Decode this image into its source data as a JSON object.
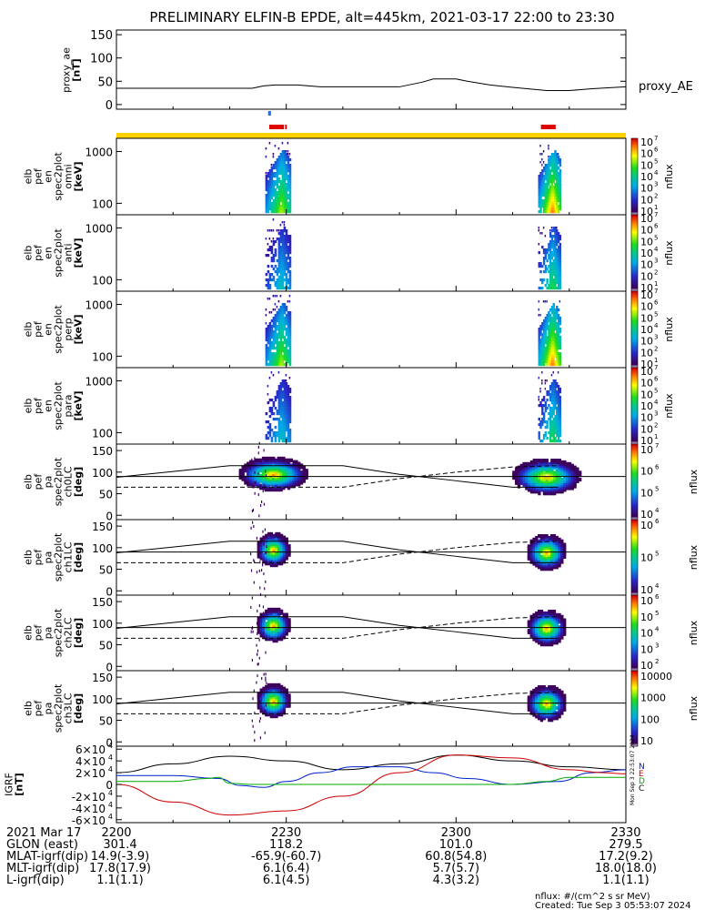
{
  "title": "PRELIMINARY ELFIN-B EPDE, alt=445km, 2021-03-17 22:00 to 23:30",
  "chart_data": [
    {
      "id": "proxy_ae",
      "type": "line",
      "ylabel_lines": [
        "proxy_ae",
        "[nT]"
      ],
      "yticks": [
        "0",
        "50",
        "100",
        "150"
      ],
      "ylim": [
        -10,
        160
      ],
      "series_label": "proxy_AE",
      "x_minutes": [
        0,
        20,
        24,
        26,
        28,
        32,
        36,
        50,
        54,
        56,
        60,
        62,
        66,
        70,
        76,
        80,
        84,
        90
      ],
      "values": [
        35,
        35,
        35,
        40,
        42,
        42,
        38,
        38,
        48,
        55,
        55,
        50,
        42,
        37,
        30,
        30,
        34,
        38
      ]
    },
    {
      "id": "indicator_bars",
      "type": "event_bars",
      "blue_minutes": [
        [
          26.8,
          27.3
        ]
      ],
      "red_minutes": [
        [
          27.0,
          29.6
        ],
        [
          29.8,
          30.1
        ],
        [
          75.0,
          77.6
        ]
      ],
      "color_blue": "#1e6ff0",
      "color_red": "#e00000",
      "color_yellow": "#ffd000"
    },
    {
      "id": "energy_spectra",
      "type": "heatmap",
      "panels": [
        {
          "ylabel_lines": [
            "elb",
            "pef",
            "en",
            "spec2plot",
            "omni",
            "[keV]"
          ],
          "yticks": [
            "100",
            "1000"
          ]
        },
        {
          "ylabel_lines": [
            "elb",
            "pef",
            "en",
            "spec2plot",
            "anti",
            "[keV]"
          ],
          "yticks": [
            "100",
            "1000"
          ]
        },
        {
          "ylabel_lines": [
            "elb",
            "pef",
            "en",
            "spec2plot",
            "perp",
            "[keV]"
          ],
          "yticks": [
            "100",
            "1000"
          ]
        },
        {
          "ylabel_lines": [
            "elb",
            "pef",
            "en",
            "spec2plot",
            "para",
            "[keV]"
          ],
          "yticks": [
            "100",
            "1000"
          ]
        }
      ],
      "colorbar_ticks": [
        "10",
        "10",
        "10",
        "10",
        "10",
        "10",
        "10"
      ],
      "colorbar_exponents": [
        "1",
        "2",
        "3",
        "4",
        "5",
        "6",
        "7"
      ],
      "colorbar_label": "nflux"
    },
    {
      "id": "pitch_angle_spectra",
      "type": "heatmap",
      "panels": [
        {
          "ylabel_lines": [
            "elb",
            "pef",
            "pa",
            "spec2plot",
            "ch0LC",
            "[deg]"
          ],
          "yticks": [
            "0",
            "50",
            "100",
            "150"
          ],
          "cb_ticks": [
            "10",
            "10",
            "10",
            "10"
          ],
          "cb_exponents": [
            "4",
            "5",
            "6",
            "7"
          ]
        },
        {
          "ylabel_lines": [
            "elb",
            "pef",
            "pa",
            "spec2plot",
            "ch1LC",
            "[deg]"
          ],
          "yticks": [
            "0",
            "50",
            "100",
            "150"
          ],
          "cb_ticks": [
            "10",
            "10",
            "10"
          ],
          "cb_exponents": [
            "4",
            "5",
            "6"
          ]
        },
        {
          "ylabel_lines": [
            "elb",
            "pef",
            "pa",
            "spec2plot",
            "ch2LC",
            "[deg]"
          ],
          "yticks": [
            "0",
            "50",
            "100",
            "150"
          ],
          "cb_ticks": [
            "10",
            "10",
            "10",
            "10",
            "10"
          ],
          "cb_exponents": [
            "2",
            "3",
            "4",
            "5",
            "6"
          ]
        },
        {
          "ylabel_lines": [
            "elb",
            "pef",
            "pa",
            "spec2plot",
            "ch3LC",
            "[deg]"
          ],
          "yticks": [
            "0",
            "50",
            "100",
            "150"
          ],
          "cb_ticks": [
            "10",
            "100",
            "1000",
            "10000"
          ],
          "cb_exponents": [
            "",
            "",
            "",
            ""
          ]
        }
      ],
      "colorbar_label": "nflux",
      "loss_cone_minutes": [
        0,
        20,
        40,
        50,
        60,
        70,
        78
      ],
      "loss_cone_deg": [
        88,
        115,
        115,
        95,
        80,
        65,
        65
      ],
      "antiloss_cone_deg": [
        65,
        65,
        65,
        85,
        100,
        112,
        115
      ],
      "ref_line_deg": 90
    },
    {
      "id": "igrf",
      "type": "line",
      "ylabel_lines": [
        "IGRF",
        "[nT]"
      ],
      "ytick_mantissas": [
        "-6×10",
        "-4×10",
        "-2×10",
        "0",
        "2×10",
        "4×10",
        "6×10"
      ],
      "ytick_exponents": [
        "4",
        "4",
        "4",
        "",
        "4",
        "4",
        "4"
      ],
      "ylim": [
        -65000,
        65000
      ],
      "legend": [
        "N",
        "E",
        "D",
        "C"
      ],
      "series": [
        {
          "name": "black",
          "color": "#000000",
          "x": [
            0,
            10,
            20,
            30,
            40,
            50,
            60,
            70,
            80,
            90
          ],
          "values": [
            20000,
            35000,
            48000,
            40000,
            25000,
            35000,
            50000,
            40000,
            30000,
            25000
          ]
        },
        {
          "name": "blue",
          "color": "#0022cc",
          "x": [
            0,
            10,
            18,
            22,
            26,
            30,
            36,
            42,
            50,
            56,
            62,
            70,
            78,
            84,
            90
          ],
          "values": [
            15000,
            15000,
            10000,
            -2000,
            -5000,
            5000,
            20000,
            30000,
            30000,
            20000,
            10000,
            0,
            5000,
            20000,
            25000
          ]
        },
        {
          "name": "red",
          "color": "#cc0000",
          "x": [
            0,
            10,
            20,
            30,
            40,
            50,
            60,
            70,
            80,
            86,
            90
          ],
          "values": [
            0,
            -30000,
            -52000,
            -45000,
            -20000,
            20000,
            50000,
            45000,
            25000,
            20000,
            18000
          ]
        },
        {
          "name": "green",
          "color": "#00aa00",
          "x": [
            0,
            10,
            16,
            18,
            20,
            24,
            30,
            40,
            50,
            60,
            70,
            76,
            80,
            90
          ],
          "values": [
            5000,
            5000,
            10000,
            12000,
            2000,
            0,
            0,
            0,
            0,
            0,
            0,
            5000,
            12000,
            12000
          ]
        }
      ]
    }
  ],
  "time_axis": {
    "labels": [
      "2200",
      "2230",
      "2300",
      "2330"
    ],
    "label_minutes": [
      0,
      30,
      60,
      90
    ],
    "date_label": "2021 Mar 17",
    "rows": [
      {
        "name": "GLON (east)",
        "values": [
          "301.4",
          "118.2",
          "101.0",
          "279.5"
        ]
      },
      {
        "name": "MLAT-igrf(dip)",
        "values": [
          "14.9(-3.9)",
          "-65.9(-60.7)",
          "60.8(54.8)",
          "17.2(9.2)"
        ]
      },
      {
        "name": "MLT-igrf(dip)",
        "values": [
          "17.8(17.9)",
          "6.1(6.4)",
          "5.7(5.7)",
          "18.0(18.0)"
        ]
      },
      {
        "name": "L-igrf(dip)",
        "values": [
          "1.1(1.1)",
          "6.1(4.5)",
          "4.3(3.2)",
          "1.1(1.1)"
        ]
      }
    ]
  },
  "footer": {
    "units": "nflux: #/(cm^2 s sr MeV)",
    "created": "Created: Tue Sep  3 05:53:07 2024",
    "vertical_stamp": "Mon Sep  3 22:53:07 2024"
  }
}
